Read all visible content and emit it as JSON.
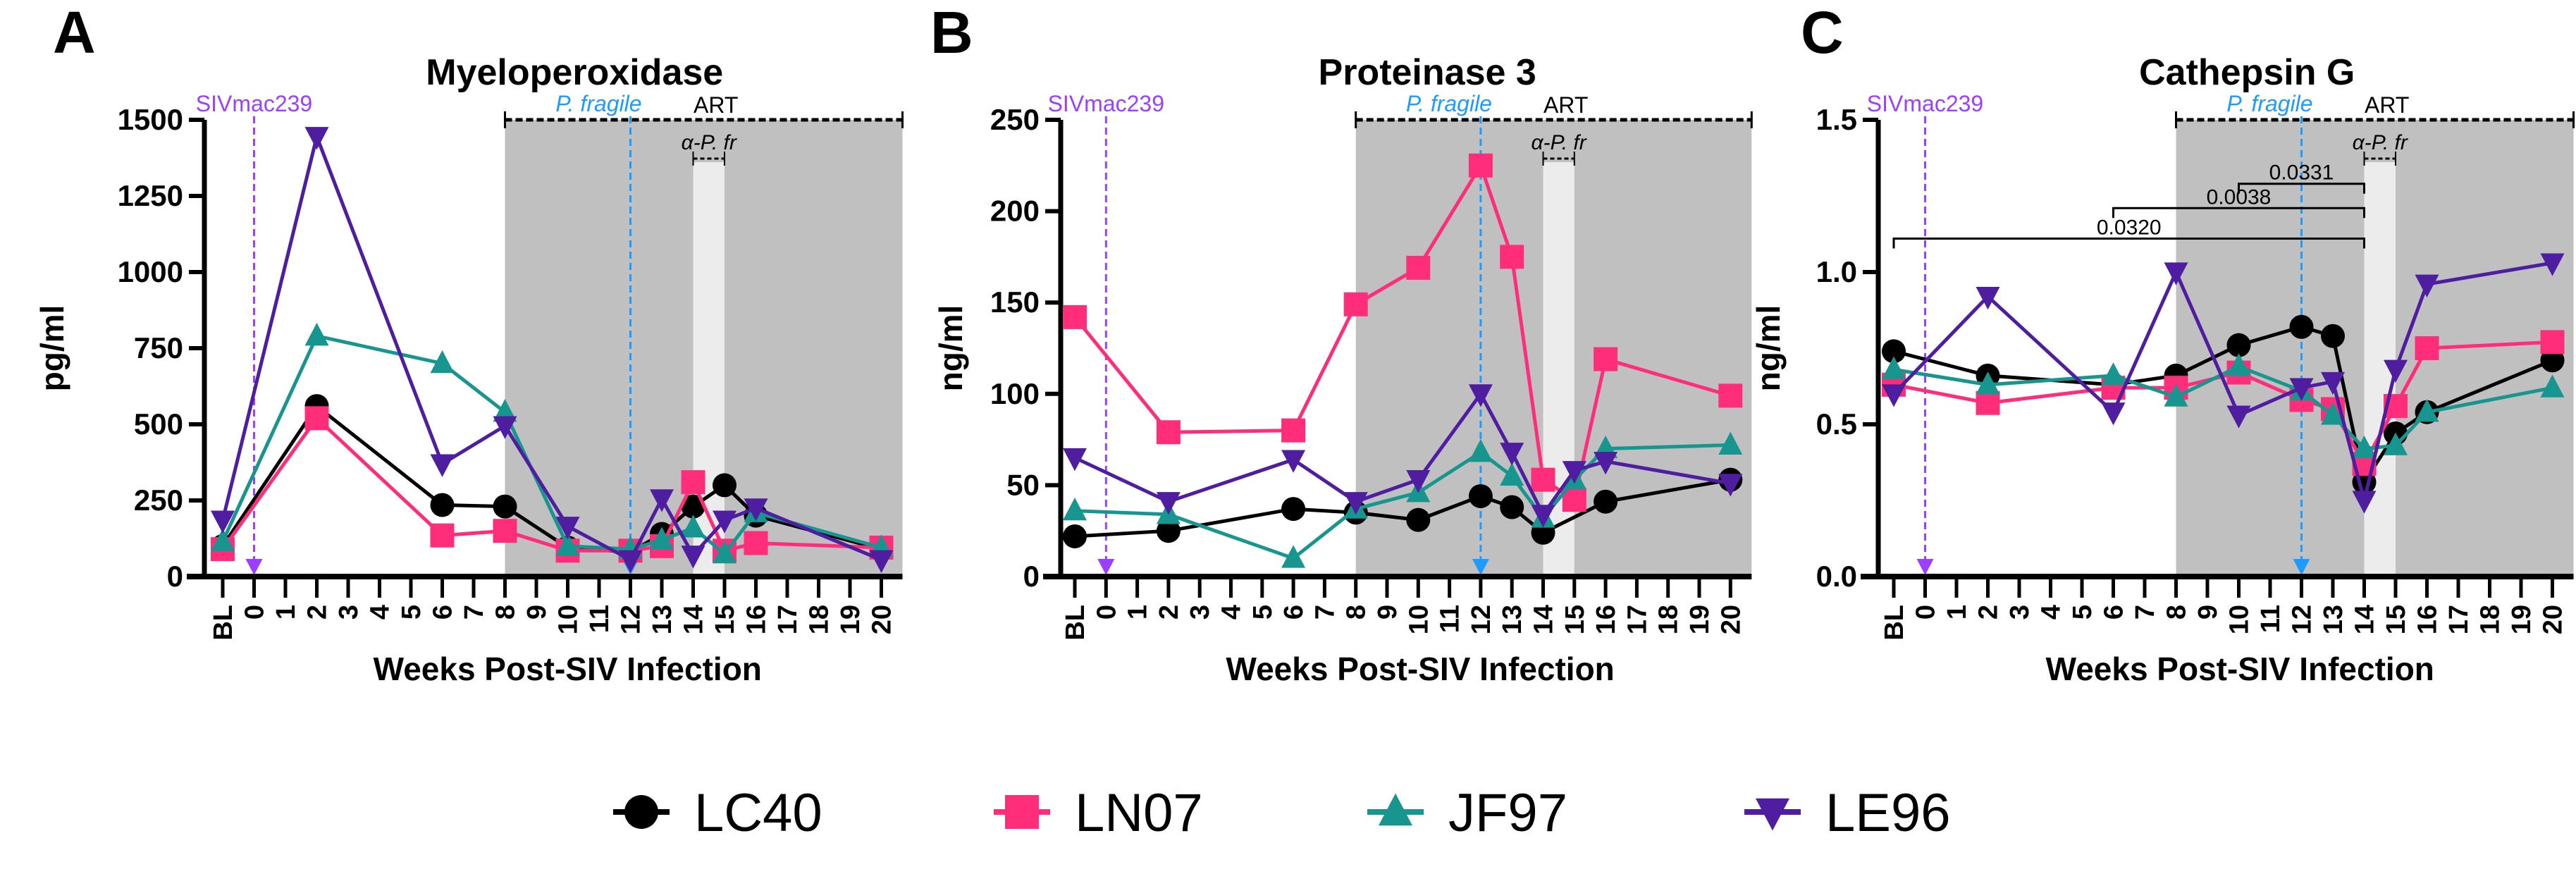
{
  "figure": {
    "legend": [
      {
        "name": "LC40",
        "color": "#000000",
        "marker": "circle"
      },
      {
        "name": "LN07",
        "color": "#ff2d7a",
        "marker": "square"
      },
      {
        "name": "JF97",
        "color": "#16968e",
        "marker": "triangle-up"
      },
      {
        "name": "LE96",
        "color": "#4f1ea0",
        "marker": "triangle-down"
      }
    ],
    "annotation_colors": {
      "siv": "#9b40ff",
      "pfragile": "#1e9bff",
      "art_shade": "#c0c0c0",
      "antibody_shade": "#ececec"
    }
  },
  "chart_data": [
    {
      "panel": "A",
      "type": "line",
      "title": "Myeloperoxidase",
      "xlabel": "Weeks Post-SIV Infection",
      "ylabel": "pg/ml",
      "ylim": [
        0,
        1500
      ],
      "yticks": [
        0,
        250,
        500,
        750,
        1000,
        1250,
        1500
      ],
      "xtick_labels": [
        "BL",
        "0",
        "1",
        "2",
        "3",
        "4",
        "5",
        "6",
        "7",
        "8",
        "9",
        "10",
        "11",
        "12",
        "13",
        "14",
        "15",
        "16",
        "17",
        "18",
        "19",
        "20"
      ],
      "x": [
        "BL",
        2,
        6,
        8,
        10,
        12,
        13,
        14,
        15,
        16,
        20
      ],
      "series": [
        {
          "name": "LC40",
          "values": [
            100,
            560,
            235,
            230,
            95,
            80,
            140,
            230,
            300,
            200,
            90
          ]
        },
        {
          "name": "LN07",
          "values": [
            90,
            520,
            135,
            150,
            85,
            85,
            100,
            310,
            85,
            110,
            95
          ]
        },
        {
          "name": "JF97",
          "values": [
            115,
            790,
            700,
            540,
            100,
            90,
            120,
            160,
            75,
            210,
            95
          ]
        },
        {
          "name": "LE96",
          "values": [
            185,
            1445,
            370,
            495,
            165,
            55,
            255,
            70,
            185,
            225,
            55
          ]
        }
      ],
      "annotations": {
        "siv_label": "SIVmac239",
        "siv_week": 0,
        "pfragile_label": "P. fragile",
        "pfragile_week": 12,
        "art_label": "ART",
        "art_weeks": [
          8,
          20
        ],
        "antibody_label": "α-P. fr",
        "antibody_weeks": [
          14,
          15
        ]
      },
      "significance": []
    },
    {
      "panel": "B",
      "type": "line",
      "title": "Proteinase 3",
      "xlabel": "Weeks Post-SIV Infection",
      "ylabel": "ng/ml",
      "ylim": [
        0,
        250
      ],
      "yticks": [
        0,
        50,
        100,
        150,
        200,
        250
      ],
      "xtick_labels": [
        "BL",
        "0",
        "1",
        "2",
        "3",
        "4",
        "5",
        "6",
        "7",
        "8",
        "9",
        "10",
        "11",
        "12",
        "13",
        "14",
        "15",
        "16",
        "17",
        "18",
        "19",
        "20"
      ],
      "x": [
        "BL",
        2,
        6,
        8,
        10,
        12,
        13,
        14,
        15,
        16,
        20
      ],
      "series": [
        {
          "name": "LC40",
          "values": [
            22,
            25,
            37,
            35,
            31,
            44,
            38,
            24,
            null,
            41,
            53
          ]
        },
        {
          "name": "LN07",
          "values": [
            142,
            79,
            80,
            149,
            169,
            225,
            175,
            53,
            42,
            119,
            99
          ]
        },
        {
          "name": "JF97",
          "values": [
            36,
            34,
            10,
            37,
            46,
            68,
            55,
            32,
            53,
            70,
            72
          ]
        },
        {
          "name": "LE96",
          "values": [
            65,
            41,
            64,
            41,
            53,
            100,
            68,
            34,
            58,
            63,
            51
          ]
        }
      ],
      "annotations": {
        "siv_label": "SIVmac239",
        "siv_week": 0,
        "pfragile_label": "P. fragile",
        "pfragile_week": 12,
        "art_label": "ART",
        "art_weeks": [
          8,
          20
        ],
        "antibody_label": "α-P. fr",
        "antibody_weeks": [
          14,
          15
        ]
      },
      "significance": []
    },
    {
      "panel": "C",
      "type": "line",
      "title": "Cathepsin G",
      "xlabel": "Weeks Post-SIV Infection",
      "ylabel": "ng/ml",
      "ylim": [
        0,
        1.5
      ],
      "yticks": [
        "0.0",
        "0.5",
        "1.0",
        "1.5"
      ],
      "xtick_labels": [
        "BL",
        "0",
        "1",
        "2",
        "3",
        "4",
        "5",
        "6",
        "7",
        "8",
        "9",
        "10",
        "11",
        "12",
        "13",
        "14",
        "15",
        "16",
        "17",
        "18",
        "19",
        "20"
      ],
      "x": [
        "BL",
        2,
        6,
        8,
        10,
        12,
        13,
        14,
        15,
        16,
        20
      ],
      "series": [
        {
          "name": "LC40",
          "values": [
            0.74,
            0.66,
            0.63,
            0.66,
            0.76,
            0.82,
            0.79,
            0.31,
            0.47,
            0.54,
            0.71
          ]
        },
        {
          "name": "LN07",
          "values": [
            0.63,
            0.57,
            0.62,
            0.62,
            0.67,
            0.58,
            0.55,
            0.37,
            0.56,
            0.75,
            0.77
          ]
        },
        {
          "name": "JF97",
          "values": [
            0.68,
            0.63,
            0.66,
            0.59,
            0.69,
            0.61,
            0.53,
            0.42,
            0.43,
            0.54,
            0.62
          ]
        },
        {
          "name": "LE96",
          "values": [
            0.6,
            0.92,
            0.54,
            1.0,
            0.53,
            0.62,
            0.64,
            0.25,
            0.68,
            0.96,
            1.03
          ]
        }
      ],
      "annotations": {
        "siv_label": "SIVmac239",
        "siv_week": 0,
        "pfragile_label": "P. fragile",
        "pfragile_week": 12,
        "art_label": "ART",
        "art_weeks": [
          8,
          20
        ],
        "antibody_label": "α-P. fr",
        "antibody_weeks": [
          14,
          15
        ]
      },
      "significance": [
        {
          "from": "BL",
          "to": 14,
          "p": "0.0320",
          "level": 1.11
        },
        {
          "from": 6,
          "to": 14,
          "p": "0.0038",
          "level": 1.21
        },
        {
          "from": 10,
          "to": 14,
          "p": "0.0331",
          "level": 1.29
        }
      ]
    }
  ]
}
